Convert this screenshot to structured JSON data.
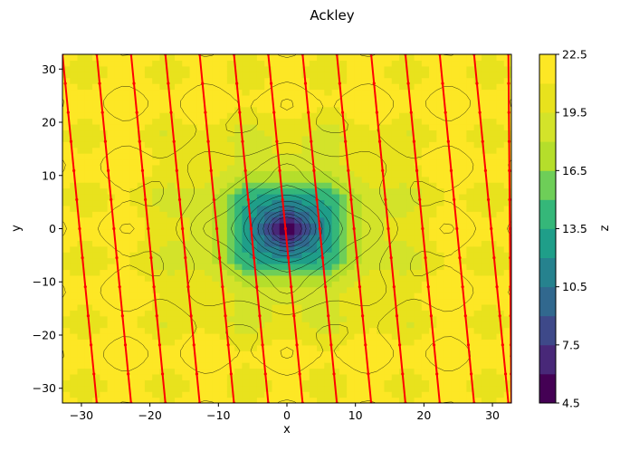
{
  "chart_data": {
    "type": "contour",
    "title": "Ackley",
    "xlabel": "x",
    "ylabel": "y",
    "colorbar_label": "z",
    "xlim": [
      -32.768,
      32.768
    ],
    "ylim": [
      -32.768,
      32.768
    ],
    "xticks": [
      -30,
      -20,
      -10,
      0,
      10,
      20,
      30
    ],
    "yticks": [
      -30,
      -20,
      -10,
      0,
      10,
      20,
      30
    ],
    "levels": [
      4.5,
      6.0,
      7.5,
      9.0,
      10.5,
      12.0,
      13.5,
      15.0,
      16.5,
      18.0,
      19.5,
      21.0,
      22.5
    ],
    "colorbar_ticks": [
      4.5,
      7.5,
      10.5,
      13.5,
      16.5,
      19.5,
      22.5
    ],
    "colorbar_tick_labels": [
      "4.5",
      "7.5",
      "10.5",
      "13.5",
      "16.5",
      "19.5",
      "22.5"
    ],
    "colormap": [
      "#440154",
      "#482878",
      "#3e4989",
      "#31688e",
      "#26828e",
      "#1f9e89",
      "#35b779",
      "#6ece58",
      "#b5de2b",
      "#d3e32a",
      "#e8e21d",
      "#fde725"
    ],
    "function": "ackley",
    "grid": false,
    "path": {
      "color": "#ff0000",
      "description": "search path sweeping in near-vertical lines",
      "sweep_x_top": [
        -32.768,
        -27.76,
        -22.75,
        -17.74,
        -12.74,
        -7.73,
        -2.72,
        2.29,
        7.29,
        12.3,
        17.3,
        22.31,
        27.32,
        32.33
      ],
      "sweep_x_bottom": [
        -27.76,
        -22.75,
        -17.74,
        -12.74,
        -7.73,
        -2.72,
        2.29,
        7.29,
        12.3,
        17.3,
        22.31,
        27.32,
        32.33,
        32.768
      ],
      "y_top": 32.768,
      "y_bottom": -32.768
    }
  }
}
